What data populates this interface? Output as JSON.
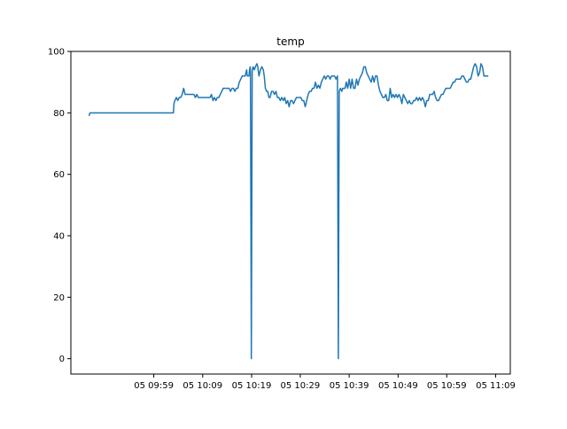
{
  "chart_data": {
    "type": "line",
    "title": "temp",
    "xlabel": "",
    "ylabel": "",
    "x_unit": "minutes",
    "x_ticks": [
      {
        "value": 9.983,
        "label": "05 09:59"
      },
      {
        "value": 10.15,
        "label": "05 10:09"
      },
      {
        "value": 10.317,
        "label": "05 10:19"
      },
      {
        "value": 10.483,
        "label": "05 10:29"
      },
      {
        "value": 10.65,
        "label": "05 10:39"
      },
      {
        "value": 10.817,
        "label": "05 10:49"
      },
      {
        "value": 10.983,
        "label": "05 10:59"
      },
      {
        "value": 11.15,
        "label": "05 11:09"
      }
    ],
    "y_ticks": [
      0,
      20,
      40,
      60,
      80,
      100
    ],
    "xlim": [
      9.7,
      11.2
    ],
    "ylim": [
      -5,
      100
    ],
    "grid": false,
    "series": [
      {
        "color": "#1f77b4",
        "points": [
          [
            9.762,
            79
          ],
          [
            9.765,
            80
          ],
          [
            9.78,
            80
          ],
          [
            9.8,
            80
          ],
          [
            9.82,
            80
          ],
          [
            9.84,
            80
          ],
          [
            9.86,
            80
          ],
          [
            9.88,
            80
          ],
          [
            9.9,
            80
          ],
          [
            9.92,
            80
          ],
          [
            9.94,
            80
          ],
          [
            9.96,
            80
          ],
          [
            9.983,
            80
          ],
          [
            10.0,
            80
          ],
          [
            10.02,
            80
          ],
          [
            10.04,
            80
          ],
          [
            10.05,
            80
          ],
          [
            10.052,
            83
          ],
          [
            10.055,
            84
          ],
          [
            10.06,
            85
          ],
          [
            10.065,
            84
          ],
          [
            10.07,
            85
          ],
          [
            10.075,
            85
          ],
          [
            10.08,
            86
          ],
          [
            10.085,
            88
          ],
          [
            10.09,
            86
          ],
          [
            10.1,
            86
          ],
          [
            10.11,
            86
          ],
          [
            10.12,
            86
          ],
          [
            10.125,
            85
          ],
          [
            10.13,
            86
          ],
          [
            10.135,
            85
          ],
          [
            10.145,
            85
          ],
          [
            10.155,
            85
          ],
          [
            10.165,
            85
          ],
          [
            10.175,
            85
          ],
          [
            10.18,
            86
          ],
          [
            10.185,
            84
          ],
          [
            10.19,
            85
          ],
          [
            10.195,
            84
          ],
          [
            10.2,
            85
          ],
          [
            10.205,
            85
          ],
          [
            10.21,
            86
          ],
          [
            10.215,
            87
          ],
          [
            10.22,
            88
          ],
          [
            10.23,
            88
          ],
          [
            10.24,
            88
          ],
          [
            10.245,
            87
          ],
          [
            10.25,
            88
          ],
          [
            10.255,
            88
          ],
          [
            10.26,
            87
          ],
          [
            10.265,
            88
          ],
          [
            10.27,
            88
          ],
          [
            10.275,
            90
          ],
          [
            10.28,
            91
          ],
          [
            10.285,
            92
          ],
          [
            10.29,
            92
          ],
          [
            10.295,
            92
          ],
          [
            10.3,
            94
          ],
          [
            10.302,
            92
          ],
          [
            10.305,
            92
          ],
          [
            10.308,
            92
          ],
          [
            10.31,
            94
          ],
          [
            10.312,
            95
          ],
          [
            10.313,
            93
          ],
          [
            10.316,
            0
          ],
          [
            10.319,
            94
          ],
          [
            10.322,
            95
          ],
          [
            10.326,
            94
          ],
          [
            10.33,
            95
          ],
          [
            10.335,
            96
          ],
          [
            10.338,
            95
          ],
          [
            10.342,
            92
          ],
          [
            10.347,
            94
          ],
          [
            10.352,
            95
          ],
          [
            10.357,
            94
          ],
          [
            10.36,
            92
          ],
          [
            10.364,
            88
          ],
          [
            10.368,
            87
          ],
          [
            10.372,
            87
          ],
          [
            10.376,
            85
          ],
          [
            10.38,
            85
          ],
          [
            10.385,
            87
          ],
          [
            10.39,
            87
          ],
          [
            10.395,
            86
          ],
          [
            10.4,
            87
          ],
          [
            10.405,
            85
          ],
          [
            10.41,
            85
          ],
          [
            10.415,
            84
          ],
          [
            10.42,
            85
          ],
          [
            10.425,
            84
          ],
          [
            10.43,
            85
          ],
          [
            10.435,
            83
          ],
          [
            10.44,
            84
          ],
          [
            10.445,
            82
          ],
          [
            10.45,
            84
          ],
          [
            10.455,
            84
          ],
          [
            10.46,
            83
          ],
          [
            10.465,
            84
          ],
          [
            10.47,
            85
          ],
          [
            10.475,
            85
          ],
          [
            10.48,
            85
          ],
          [
            10.485,
            85
          ],
          [
            10.49,
            84
          ],
          [
            10.495,
            84
          ],
          [
            10.5,
            82
          ],
          [
            10.505,
            84
          ],
          [
            10.51,
            86
          ],
          [
            10.515,
            87
          ],
          [
            10.52,
            87
          ],
          [
            10.525,
            88
          ],
          [
            10.53,
            88
          ],
          [
            10.535,
            90
          ],
          [
            10.54,
            88
          ],
          [
            10.545,
            89
          ],
          [
            10.55,
            88
          ],
          [
            10.555,
            90
          ],
          [
            10.56,
            91
          ],
          [
            10.565,
            92
          ],
          [
            10.57,
            91
          ],
          [
            10.575,
            92
          ],
          [
            10.58,
            92
          ],
          [
            10.585,
            91
          ],
          [
            10.59,
            92
          ],
          [
            10.595,
            92
          ],
          [
            10.6,
            92
          ],
          [
            10.605,
            91
          ],
          [
            10.61,
            92
          ],
          [
            10.613,
            0
          ],
          [
            10.616,
            87
          ],
          [
            10.62,
            88
          ],
          [
            10.625,
            87
          ],
          [
            10.628,
            88
          ],
          [
            10.632,
            88
          ],
          [
            10.636,
            88
          ],
          [
            10.64,
            90
          ],
          [
            10.645,
            88
          ],
          [
            10.65,
            91
          ],
          [
            10.655,
            88
          ],
          [
            10.66,
            91
          ],
          [
            10.665,
            88
          ],
          [
            10.67,
            88
          ],
          [
            10.675,
            91
          ],
          [
            10.68,
            89
          ],
          [
            10.685,
            91
          ],
          [
            10.69,
            92
          ],
          [
            10.695,
            93
          ],
          [
            10.7,
            95
          ],
          [
            10.705,
            95
          ],
          [
            10.71,
            93
          ],
          [
            10.715,
            92
          ],
          [
            10.72,
            91
          ],
          [
            10.725,
            90
          ],
          [
            10.73,
            92
          ],
          [
            10.735,
            90
          ],
          [
            10.74,
            92
          ],
          [
            10.745,
            92
          ],
          [
            10.75,
            89
          ],
          [
            10.755,
            87
          ],
          [
            10.76,
            86
          ],
          [
            10.765,
            85
          ],
          [
            10.77,
            85
          ],
          [
            10.775,
            86
          ],
          [
            10.78,
            84
          ],
          [
            10.785,
            84
          ],
          [
            10.79,
            88
          ],
          [
            10.795,
            85
          ],
          [
            10.8,
            86
          ],
          [
            10.805,
            85
          ],
          [
            10.81,
            86
          ],
          [
            10.815,
            85
          ],
          [
            10.82,
            86
          ],
          [
            10.825,
            85
          ],
          [
            10.83,
            83
          ],
          [
            10.835,
            86
          ],
          [
            10.84,
            85
          ],
          [
            10.845,
            84
          ],
          [
            10.85,
            83
          ],
          [
            10.855,
            84
          ],
          [
            10.86,
            83
          ],
          [
            10.865,
            83
          ],
          [
            10.87,
            84
          ],
          [
            10.875,
            84
          ],
          [
            10.88,
            85
          ],
          [
            10.885,
            84
          ],
          [
            10.89,
            85
          ],
          [
            10.895,
            84
          ],
          [
            10.9,
            85
          ],
          [
            10.905,
            84
          ],
          [
            10.91,
            82
          ],
          [
            10.915,
            84
          ],
          [
            10.92,
            84
          ],
          [
            10.925,
            86
          ],
          [
            10.93,
            86
          ],
          [
            10.935,
            86
          ],
          [
            10.94,
            87
          ],
          [
            10.945,
            85
          ],
          [
            10.95,
            84
          ],
          [
            10.955,
            84
          ],
          [
            10.96,
            85
          ],
          [
            10.965,
            86
          ],
          [
            10.97,
            86
          ],
          [
            10.975,
            87
          ],
          [
            10.98,
            88
          ],
          [
            10.985,
            88
          ],
          [
            10.99,
            88
          ],
          [
            10.995,
            88
          ],
          [
            11.0,
            89
          ],
          [
            11.005,
            90
          ],
          [
            11.01,
            90
          ],
          [
            11.015,
            91
          ],
          [
            11.02,
            91
          ],
          [
            11.025,
            91
          ],
          [
            11.03,
            91
          ],
          [
            11.035,
            92
          ],
          [
            11.04,
            92
          ],
          [
            11.045,
            91
          ],
          [
            11.05,
            90
          ],
          [
            11.055,
            90
          ],
          [
            11.06,
            91
          ],
          [
            11.065,
            91
          ],
          [
            11.07,
            93
          ],
          [
            11.075,
            95
          ],
          [
            11.08,
            96
          ],
          [
            11.085,
            95
          ],
          [
            11.09,
            92
          ],
          [
            11.095,
            93
          ],
          [
            11.1,
            96
          ],
          [
            11.105,
            95
          ],
          [
            11.11,
            92
          ],
          [
            11.115,
            92
          ],
          [
            11.12,
            92
          ],
          [
            11.125,
            92
          ]
        ]
      }
    ]
  }
}
